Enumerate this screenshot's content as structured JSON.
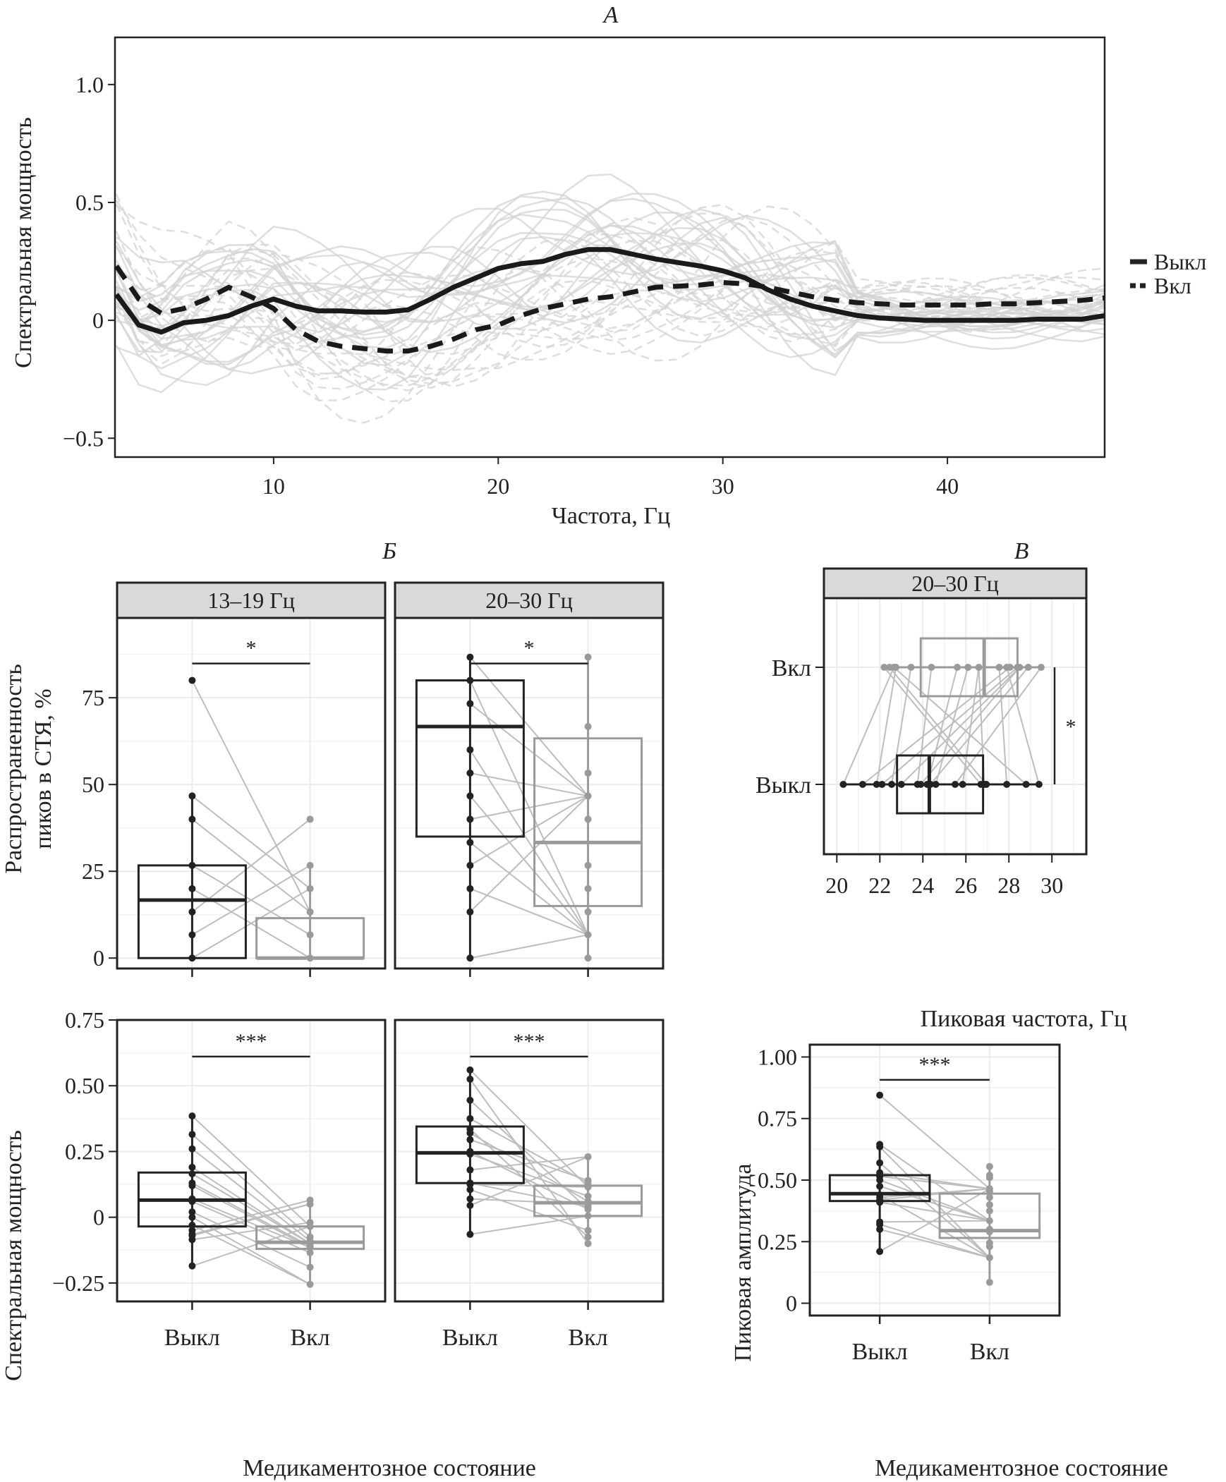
{
  "chart_data": [
    {
      "id": "A",
      "type": "line",
      "title": "А",
      "xlabel": "Частота, Гц",
      "ylabel": "Спектральная мощность",
      "xlim": [
        3,
        47
      ],
      "ylim": [
        -0.58,
        1.2
      ],
      "xticks": [
        10,
        20,
        30,
        40
      ],
      "yticks": [
        -0.5,
        0,
        0.5,
        1.0
      ],
      "ytick_labels": [
        "−0.5",
        "0",
        "0.5",
        "1.0"
      ],
      "grid": false,
      "legend": {
        "placement": "right",
        "entries": [
          {
            "label": "Выкл",
            "style": "solid"
          },
          {
            "label": "Вкл",
            "style": "dashed"
          }
        ]
      },
      "x": [
        3,
        4,
        5,
        6,
        7,
        8,
        9,
        10,
        11,
        12,
        13,
        14,
        15,
        16,
        17,
        18,
        19,
        20,
        21,
        22,
        23,
        24,
        25,
        26,
        27,
        28,
        29,
        30,
        31,
        32,
        33,
        34,
        35,
        36,
        37,
        38,
        39,
        40,
        41,
        42,
        43,
        44,
        45,
        46,
        47
      ],
      "series": [
        {
          "name": "Выкл",
          "style": "solid",
          "values": [
            0.11,
            -0.02,
            -0.05,
            -0.01,
            0.0,
            0.02,
            0.06,
            0.09,
            0.06,
            0.04,
            0.04,
            0.035,
            0.035,
            0.045,
            0.09,
            0.14,
            0.18,
            0.22,
            0.24,
            0.25,
            0.28,
            0.3,
            0.3,
            0.28,
            0.26,
            0.245,
            0.23,
            0.21,
            0.18,
            0.13,
            0.09,
            0.06,
            0.04,
            0.02,
            0.01,
            0.005,
            0.0,
            0.0,
            0.0,
            0.0,
            0.0,
            0.005,
            0.005,
            0.005,
            0.02
          ]
        },
        {
          "name": "Вкл",
          "style": "dashed",
          "values": [
            0.23,
            0.09,
            0.03,
            0.05,
            0.09,
            0.14,
            0.1,
            0.05,
            -0.04,
            -0.09,
            -0.11,
            -0.12,
            -0.13,
            -0.13,
            -0.11,
            -0.08,
            -0.04,
            -0.02,
            0.02,
            0.05,
            0.07,
            0.09,
            0.1,
            0.12,
            0.14,
            0.145,
            0.15,
            0.16,
            0.155,
            0.14,
            0.12,
            0.1,
            0.085,
            0.075,
            0.07,
            0.065,
            0.065,
            0.065,
            0.065,
            0.07,
            0.07,
            0.075,
            0.08,
            0.085,
            0.095
          ]
        }
      ],
      "note": "Thin light-grey background lines show individual subjects (solid = Выкл, dashed = Вкл)."
    },
    {
      "id": "B_prevalence",
      "type": "boxplot",
      "title": "Б",
      "ylabel": "Распространенность пиков в СТЯ, %",
      "categories": [
        "Выкл",
        "Вкл"
      ],
      "ylim": [
        -3,
        98
      ],
      "yticks": [
        0,
        25,
        50,
        75
      ],
      "facets": [
        {
          "label": "13–19 Гц",
          "significance": "*",
          "boxes": [
            {
              "group": "Выкл",
              "q1": 0,
              "median": 16.7,
              "q3": 26.7,
              "whisker_low": 0,
              "whisker_high": 46.7,
              "points": [
                80,
                46.7,
                40,
                26.7,
                20,
                13.3,
                6.7,
                0
              ]
            },
            {
              "group": "Вкл",
              "q1": 0,
              "median": 0,
              "q3": 11.5,
              "whisker_low": 0,
              "whisker_high": 26.7,
              "points": [
                40,
                26.7,
                20,
                13.3,
                6.7,
                0
              ]
            }
          ]
        },
        {
          "label": "20–30 Гц",
          "significance": "*",
          "boxes": [
            {
              "group": "Выкл",
              "q1": 35,
              "median": 66.7,
              "q3": 80,
              "whisker_low": 0,
              "whisker_high": 86.7,
              "points": [
                86.7,
                80,
                73.3,
                60,
                53.3,
                46.7,
                40,
                33.3,
                26.7,
                20,
                13.3,
                0
              ]
            },
            {
              "group": "Вкл",
              "q1": 15,
              "median": 33.3,
              "q3": 63.3,
              "whisker_low": 0,
              "whisker_high": 86.7,
              "points": [
                86.7,
                66.7,
                53.3,
                46.7,
                40,
                26.7,
                20,
                13.3,
                6.7,
                0
              ]
            }
          ]
        }
      ]
    },
    {
      "id": "B_power",
      "type": "boxplot",
      "ylabel": "Спектральная мощность",
      "xlabel": "Медикаментозное состояние",
      "categories": [
        "Выкл",
        "Вкл"
      ],
      "ylim": [
        -0.32,
        0.75
      ],
      "yticks": [
        -0.25,
        0,
        0.25,
        0.5,
        0.75
      ],
      "ytick_labels": [
        "−0.25",
        "0",
        "0.25",
        "0.50",
        "0.75"
      ],
      "facets": [
        {
          "label": "13–19 Гц",
          "significance": "***",
          "boxes": [
            {
              "group": "Выкл",
              "q1": -0.035,
              "median": 0.065,
              "q3": 0.17,
              "whisker_low": -0.185,
              "whisker_high": 0.385,
              "points": [
                0.385,
                0.315,
                0.26,
                0.19,
                0.165,
                0.13,
                0.12,
                0.07,
                0.06,
                0.02,
                0.0,
                -0.03,
                -0.05,
                -0.065,
                -0.07,
                -0.085,
                -0.185
              ]
            },
            {
              "group": "Вкл",
              "q1": -0.12,
              "median": -0.095,
              "q3": -0.035,
              "whisker_low": -0.255,
              "whisker_high": 0.065,
              "points": [
                0.065,
                0.05,
                -0.02,
                -0.035,
                -0.075,
                -0.09,
                -0.1,
                -0.11,
                -0.115,
                -0.135,
                -0.19,
                -0.255
              ]
            }
          ]
        },
        {
          "label": "20–30 Гц",
          "significance": "***",
          "boxes": [
            {
              "group": "Выкл",
              "q1": 0.13,
              "median": 0.245,
              "q3": 0.345,
              "whisker_low": -0.065,
              "whisker_high": 0.56,
              "points": [
                0.56,
                0.525,
                0.445,
                0.375,
                0.335,
                0.32,
                0.295,
                0.25,
                0.24,
                0.18,
                0.13,
                0.125,
                0.105,
                0.07,
                0.045,
                -0.065
              ]
            },
            {
              "group": "Вкл",
              "q1": 0.005,
              "median": 0.055,
              "q3": 0.12,
              "whisker_low": -0.1,
              "whisker_high": 0.23,
              "points": [
                0.23,
                0.14,
                0.13,
                0.115,
                0.08,
                0.06,
                0.05,
                0.04,
                0.03,
                0.005,
                -0.05,
                -0.075,
                -0.1
              ]
            }
          ]
        }
      ]
    },
    {
      "id": "V_freq",
      "type": "boxplot",
      "orientation": "horizontal",
      "title": "В",
      "facet_label": "20–30 Гц",
      "xlabel": "Пиковая частота, Гц",
      "categories": [
        "Выкл",
        "Вкл"
      ],
      "xlim": [
        19.4,
        31.6
      ],
      "xticks": [
        20,
        22,
        24,
        26,
        28,
        30
      ],
      "significance": "*",
      "boxes": [
        {
          "group": "Выкл",
          "q1": 22.8,
          "median": 24.3,
          "q3": 26.8,
          "whisker_low": 20.3,
          "whisker_high": 29.4,
          "points": [
            20.3,
            21.2,
            21.85,
            22.1,
            22.55,
            23.0,
            23.75,
            23.9,
            24.2,
            24.35,
            24.6,
            25.5,
            25.85,
            26.7,
            26.85,
            26.95,
            27.9,
            28.8,
            29.4
          ]
        },
        {
          "group": "Вкл",
          "q1": 23.9,
          "median": 26.85,
          "q3": 28.4,
          "whisker_low": 22.2,
          "whisker_high": 29.5,
          "points": [
            22.2,
            22.45,
            22.65,
            22.75,
            23.45,
            24.4,
            25.6,
            26.1,
            26.6,
            27.55,
            27.9,
            28.05,
            28.4,
            28.5,
            28.9,
            29.5
          ]
        }
      ]
    },
    {
      "id": "V_amp",
      "type": "boxplot",
      "ylabel": "Пиковая амплитуда",
      "xlabel": "Медикаментозное состояние",
      "categories": [
        "Выкл",
        "Вкл"
      ],
      "ylim": [
        -0.05,
        1.05
      ],
      "yticks": [
        0,
        0.25,
        0.5,
        0.75,
        1.0
      ],
      "ytick_labels": [
        "0",
        "0.25",
        "0.50",
        "0.75",
        "1.00"
      ],
      "significance": "***",
      "boxes": [
        {
          "group": "Выкл",
          "q1": 0.415,
          "median": 0.445,
          "q3": 0.52,
          "whisker_low": 0.21,
          "whisker_high": 0.645,
          "points": [
            0.845,
            0.645,
            0.635,
            0.57,
            0.53,
            0.515,
            0.5,
            0.475,
            0.44,
            0.43,
            0.42,
            0.41,
            0.33,
            0.32,
            0.3,
            0.21
          ]
        },
        {
          "group": "Вкл",
          "q1": 0.265,
          "median": 0.295,
          "q3": 0.445,
          "whisker_low": 0.085,
          "whisker_high": 0.555,
          "points": [
            0.555,
            0.52,
            0.51,
            0.465,
            0.455,
            0.43,
            0.4,
            0.375,
            0.335,
            0.3,
            0.29,
            0.245,
            0.23,
            0.185,
            0.085
          ]
        }
      ]
    }
  ],
  "labels": {
    "panel_a": "А",
    "panel_b": "Б",
    "panel_v": "В",
    "a_xlabel": "Частота, Гц",
    "a_ylabel": "Спектральная мощность",
    "legend_off": "Выкл",
    "legend_on": "Вкл",
    "strip_1319": "13–19 Гц",
    "strip_2030": "20–30 Гц",
    "strip_v": "20–30 Гц",
    "b_ylabel_prev_1": "Распространенность",
    "b_ylabel_prev_2": "пиков в СТЯ, %",
    "b_ylabel_pow": "Спектральная мощность",
    "b_xlabel": "Медикаментозное состояние",
    "v_xlabel_freq": "Пиковая частота, Гц",
    "v_ylabel_amp": "Пиковая амплитуда",
    "v_xlabel_amp": "Медикаментозное состояние",
    "cat_off": "Выкл",
    "cat_on": "Вкл"
  },
  "colors": {
    "off": "#222222",
    "on": "#9a9a9a",
    "pair_line": "#bdbdbd",
    "bg_line": "#d3d3d3",
    "grid": "#ebebeb",
    "strip_bg": "#d9d9d9"
  }
}
